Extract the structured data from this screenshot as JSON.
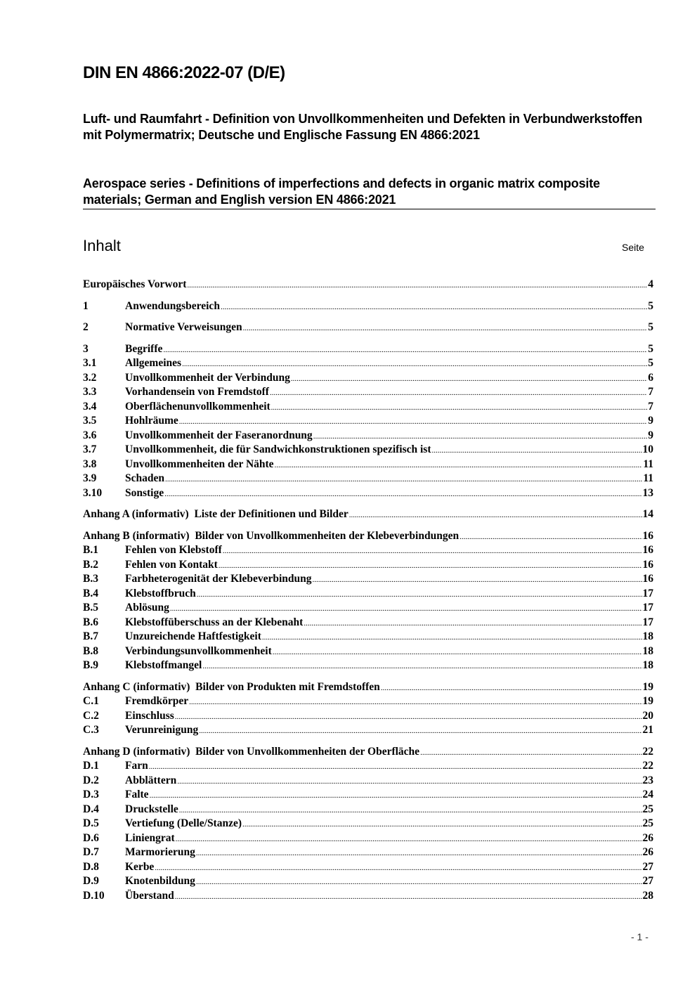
{
  "title": "DIN EN 4866:2022-07 (D/E)",
  "subtitle_de": "Luft- und Raumfahrt - Definition von Unvollkommenheiten und Defekten in Verbundwerkstoffen mit Polymermatrix; Deutsche und Englische Fassung EN 4866:2021",
  "subtitle_en": "Aerospace series - Definitions of imperfections and defects in organic matrix composite materials; German and English version EN 4866:2021",
  "toc": {
    "heading": "Inhalt",
    "page_label": "Seite",
    "groups": [
      [
        {
          "num": "",
          "label": "Europäisches Vorwort",
          "page": "4"
        }
      ],
      [
        {
          "num": "1",
          "label": "Anwendungsbereich",
          "page": "5"
        }
      ],
      [
        {
          "num": "2",
          "label": "Normative Verweisungen",
          "page": "5"
        }
      ],
      [
        {
          "num": "3",
          "label": "Begriffe",
          "page": "5"
        },
        {
          "num": "3.1",
          "label": "Allgemeines",
          "page": "5"
        },
        {
          "num": "3.2",
          "label": "Unvollkommenheit der Verbindung",
          "page": "6"
        },
        {
          "num": "3.3",
          "label": "Vorhandensein von Fremdstoff",
          "page": "7"
        },
        {
          "num": "3.4",
          "label": "Oberflächenunvollkommenheit",
          "page": "7"
        },
        {
          "num": "3.5",
          "label": "Hohlräume",
          "page": "9"
        },
        {
          "num": "3.6",
          "label": "Unvollkommenheit der Faseranordnung",
          "page": "9"
        },
        {
          "num": "3.7",
          "label": "Unvollkommenheit, die für Sandwichkonstruktionen spezifisch ist",
          "page": "10"
        },
        {
          "num": "3.8",
          "label": "Unvollkommenheiten der Nähte",
          "page": "11"
        },
        {
          "num": "3.9",
          "label": "Schaden",
          "page": "11"
        },
        {
          "num": "3.10",
          "label": "Sonstige",
          "page": "13"
        }
      ],
      [
        {
          "num": "",
          "label": "Anhang A (informativ)  Liste der Definitionen und Bilder",
          "page": "14"
        }
      ],
      [
        {
          "num": "",
          "label": "Anhang B (informativ)  Bilder von Unvollkommenheiten der Klebeverbindungen",
          "page": "16"
        },
        {
          "num": "B.1",
          "label": "Fehlen von Klebstoff",
          "page": "16"
        },
        {
          "num": "B.2",
          "label": "Fehlen von Kontakt",
          "page": "16"
        },
        {
          "num": "B.3",
          "label": "Farbheterogenität der Klebeverbindung",
          "page": "16"
        },
        {
          "num": "B.4",
          "label": "Klebstoffbruch",
          "page": "17"
        },
        {
          "num": "B.5",
          "label": "Ablösung",
          "page": "17"
        },
        {
          "num": "B.6",
          "label": "Klebstoffüberschuss an der Klebenaht",
          "page": "17"
        },
        {
          "num": "B.7",
          "label": "Unzureichende Haftfestigkeit",
          "page": "18"
        },
        {
          "num": "B.8",
          "label": "Verbindungsunvollkommenheit",
          "page": "18"
        },
        {
          "num": "B.9",
          "label": "Klebstoffmangel",
          "page": "18"
        }
      ],
      [
        {
          "num": "",
          "label": "Anhang C (informativ)  Bilder von Produkten mit Fremdstoffen",
          "page": "19"
        },
        {
          "num": "C.1",
          "label": "Fremdkörper",
          "page": "19"
        },
        {
          "num": "C.2",
          "label": "Einschluss",
          "page": "20"
        },
        {
          "num": "C.3",
          "label": "Verunreinigung",
          "page": "21"
        }
      ],
      [
        {
          "num": "",
          "label": "Anhang D (informativ)  Bilder von Unvollkommenheiten der Oberfläche",
          "page": "22"
        },
        {
          "num": "D.1",
          "label": "Farn",
          "page": "22"
        },
        {
          "num": "D.2",
          "label": "Abblättern",
          "page": "23"
        },
        {
          "num": "D.3",
          "label": "Falte",
          "page": "24"
        },
        {
          "num": "D.4",
          "label": "Druckstelle",
          "page": "25"
        },
        {
          "num": "D.5",
          "label": "Vertiefung (Delle/Stanze)",
          "page": "25"
        },
        {
          "num": "D.6",
          "label": "Liniengrat",
          "page": "26"
        },
        {
          "num": "D.7",
          "label": "Marmorierung",
          "page": "26"
        },
        {
          "num": "D.8",
          "label": "Kerbe",
          "page": "27"
        },
        {
          "num": "D.9",
          "label": "Knotenbildung",
          "page": "27"
        },
        {
          "num": "D.10",
          "label": "Überstand",
          "page": "28"
        }
      ]
    ]
  },
  "page_number": "- 1 -"
}
